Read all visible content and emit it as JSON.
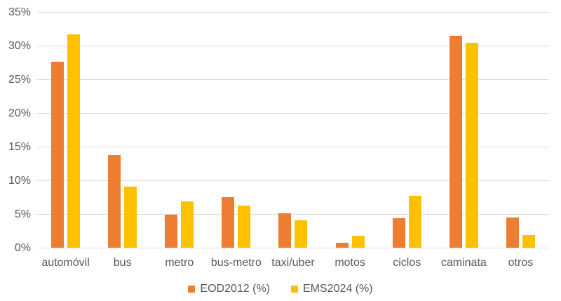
{
  "chart_data": {
    "type": "bar",
    "title": "",
    "xlabel": "",
    "ylabel": "",
    "categories": [
      "automóvil",
      "bus",
      "metro",
      "bus-metro",
      "taxi/uber",
      "motos",
      "ciclos",
      "caminata",
      "otros"
    ],
    "series": [
      {
        "name": "EOD2012 (%)",
        "color": "#ED7D31",
        "values": [
          27.6,
          13.8,
          4.9,
          7.5,
          5.1,
          0.7,
          4.4,
          31.5,
          4.5
        ]
      },
      {
        "name": "EMS2024 (%)",
        "color": "#FFC000",
        "values": [
          31.7,
          9.1,
          6.9,
          6.3,
          4.1,
          1.8,
          7.7,
          30.4,
          1.9
        ]
      }
    ],
    "ylim": [
      0,
      35
    ],
    "ytick_step": 5,
    "yticks": [
      "0%",
      "5%",
      "10%",
      "15%",
      "20%",
      "25%",
      "30%",
      "35%"
    ],
    "grid": true,
    "legend_position": "bottom"
  },
  "colors": {
    "background": "#FFFFFF",
    "gridline": "#D9D9D9",
    "axis_text": "#595959",
    "series_1": "#ED7D31",
    "series_2": "#FFC000"
  }
}
